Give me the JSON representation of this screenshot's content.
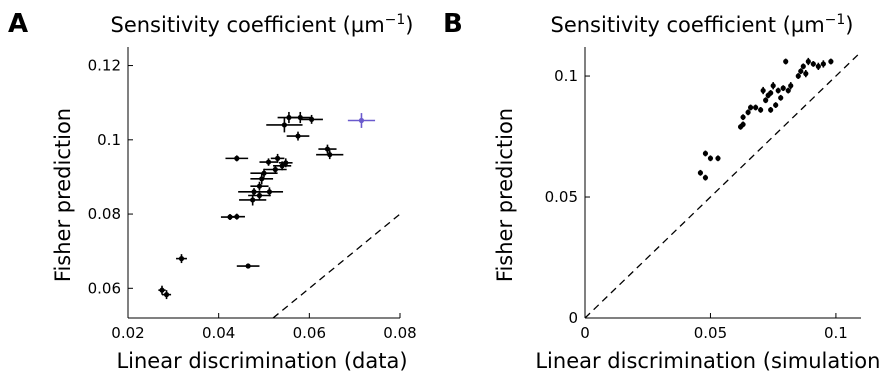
{
  "chart_data": [
    {
      "panel": "A",
      "type": "scatter",
      "title": "Sensitivity coefficient (µm⁻¹)",
      "xlabel": "Linear discrimination (data)",
      "ylabel": "Fisher prediction",
      "xlim": [
        0.02,
        0.08
      ],
      "ylim": [
        0.052,
        0.125
      ],
      "xticks": [
        0.02,
        0.04,
        0.06,
        0.08
      ],
      "xtick_labels": [
        "0.02",
        "0.04",
        "0.06",
        "0.08"
      ],
      "yticks": [
        0.06,
        0.08,
        0.1,
        0.12
      ],
      "ytick_labels": [
        "0.06",
        "0.08",
        "0.1",
        "0.12"
      ],
      "reference_line": "y = x (dashed)",
      "points": [
        {
          "x": 0.0275,
          "y": 0.0595,
          "xerr": 0.0008,
          "yerr": 0.0012,
          "color": "#000000"
        },
        {
          "x": 0.0285,
          "y": 0.0583,
          "xerr": 0.001,
          "yerr": 0.0012,
          "color": "#000000"
        },
        {
          "x": 0.0318,
          "y": 0.068,
          "xerr": 0.0012,
          "yerr": 0.0012,
          "color": "#000000"
        },
        {
          "x": 0.0465,
          "y": 0.066,
          "xerr": 0.0025,
          "yerr": 0.0005,
          "color": "#000000"
        },
        {
          "x": 0.0425,
          "y": 0.0792,
          "xerr": 0.002,
          "yerr": 0.0008,
          "color": "#000000"
        },
        {
          "x": 0.044,
          "y": 0.0793,
          "xerr": 0.0018,
          "yerr": 0.0008,
          "color": "#000000"
        },
        {
          "x": 0.0475,
          "y": 0.0838,
          "xerr": 0.003,
          "yerr": 0.0015,
          "color": "#000000"
        },
        {
          "x": 0.049,
          "y": 0.085,
          "xerr": 0.0025,
          "yerr": 0.0012,
          "color": "#000000"
        },
        {
          "x": 0.0478,
          "y": 0.086,
          "xerr": 0.0035,
          "yerr": 0.001,
          "color": "#000000"
        },
        {
          "x": 0.0512,
          "y": 0.086,
          "xerr": 0.003,
          "yerr": 0.0012,
          "color": "#000000"
        },
        {
          "x": 0.049,
          "y": 0.0875,
          "xerr": 0.002,
          "yerr": 0.0012,
          "color": "#000000"
        },
        {
          "x": 0.0495,
          "y": 0.0895,
          "xerr": 0.0025,
          "yerr": 0.0015,
          "color": "#000000"
        },
        {
          "x": 0.05,
          "y": 0.091,
          "xerr": 0.003,
          "yerr": 0.0012,
          "color": "#000000"
        },
        {
          "x": 0.0525,
          "y": 0.092,
          "xerr": 0.0025,
          "yerr": 0.0012,
          "color": "#000000"
        },
        {
          "x": 0.054,
          "y": 0.093,
          "xerr": 0.002,
          "yerr": 0.0012,
          "color": "#000000"
        },
        {
          "x": 0.051,
          "y": 0.094,
          "xerr": 0.002,
          "yerr": 0.001,
          "color": "#000000"
        },
        {
          "x": 0.0548,
          "y": 0.0938,
          "xerr": 0.0015,
          "yerr": 0.0012,
          "color": "#000000"
        },
        {
          "x": 0.044,
          "y": 0.095,
          "xerr": 0.0025,
          "yerr": 0.0008,
          "color": "#000000"
        },
        {
          "x": 0.053,
          "y": 0.095,
          "xerr": 0.0015,
          "yerr": 0.0012,
          "color": "#000000"
        },
        {
          "x": 0.0545,
          "y": 0.104,
          "xerr": 0.004,
          "yerr": 0.002,
          "color": "#000000"
        },
        {
          "x": 0.0555,
          "y": 0.106,
          "xerr": 0.0025,
          "yerr": 0.0015,
          "color": "#000000"
        },
        {
          "x": 0.058,
          "y": 0.106,
          "xerr": 0.0025,
          "yerr": 0.0015,
          "color": "#000000"
        },
        {
          "x": 0.0605,
          "y": 0.1055,
          "xerr": 0.0025,
          "yerr": 0.0012,
          "color": "#000000"
        },
        {
          "x": 0.0575,
          "y": 0.101,
          "xerr": 0.0025,
          "yerr": 0.0012,
          "color": "#000000"
        },
        {
          "x": 0.064,
          "y": 0.0975,
          "xerr": 0.002,
          "yerr": 0.0012,
          "color": "#000000"
        },
        {
          "x": 0.0645,
          "y": 0.096,
          "xerr": 0.003,
          "yerr": 0.0012,
          "color": "#000000"
        },
        {
          "x": 0.0715,
          "y": 0.1052,
          "xerr": 0.003,
          "yerr": 0.002,
          "color": "#6a5acd"
        }
      ]
    },
    {
      "panel": "B",
      "type": "scatter",
      "title": "Sensitivity coefficient (µm⁻¹)",
      "xlabel": "Linear discrimination (simulation)",
      "ylabel": "Fisher prediction",
      "xlim": [
        0,
        0.11
      ],
      "ylim": [
        0,
        0.112
      ],
      "xticks": [
        0,
        0.05,
        0.1
      ],
      "xtick_labels": [
        "0",
        "0.05",
        "0.1"
      ],
      "yticks": [
        0,
        0.05,
        0.1
      ],
      "ytick_labels": [
        "0",
        "0.05",
        "0.1"
      ],
      "reference_line": "y = x (dashed)",
      "points": [
        {
          "x": 0.046,
          "y": 0.06,
          "yerr": 0.0012,
          "color": "#000000"
        },
        {
          "x": 0.048,
          "y": 0.058,
          "yerr": 0.0012,
          "color": "#000000"
        },
        {
          "x": 0.048,
          "y": 0.068,
          "yerr": 0.0012,
          "color": "#000000"
        },
        {
          "x": 0.05,
          "y": 0.066,
          "yerr": 0.0012,
          "color": "#000000"
        },
        {
          "x": 0.053,
          "y": 0.066,
          "yerr": 0.0012,
          "color": "#000000"
        },
        {
          "x": 0.062,
          "y": 0.079,
          "yerr": 0.0012,
          "color": "#000000"
        },
        {
          "x": 0.063,
          "y": 0.08,
          "yerr": 0.0012,
          "color": "#000000"
        },
        {
          "x": 0.063,
          "y": 0.083,
          "yerr": 0.0012,
          "color": "#000000"
        },
        {
          "x": 0.065,
          "y": 0.085,
          "yerr": 0.0012,
          "color": "#000000"
        },
        {
          "x": 0.066,
          "y": 0.087,
          "yerr": 0.0012,
          "color": "#000000"
        },
        {
          "x": 0.068,
          "y": 0.087,
          "yerr": 0.0012,
          "color": "#000000"
        },
        {
          "x": 0.07,
          "y": 0.086,
          "yerr": 0.0012,
          "color": "#000000"
        },
        {
          "x": 0.071,
          "y": 0.094,
          "yerr": 0.0015,
          "color": "#000000"
        },
        {
          "x": 0.072,
          "y": 0.09,
          "yerr": 0.0012,
          "color": "#000000"
        },
        {
          "x": 0.073,
          "y": 0.092,
          "yerr": 0.0012,
          "color": "#000000"
        },
        {
          "x": 0.074,
          "y": 0.086,
          "yerr": 0.0012,
          "color": "#000000"
        },
        {
          "x": 0.074,
          "y": 0.093,
          "yerr": 0.0012,
          "color": "#000000"
        },
        {
          "x": 0.075,
          "y": 0.096,
          "yerr": 0.0015,
          "color": "#000000"
        },
        {
          "x": 0.076,
          "y": 0.088,
          "yerr": 0.0012,
          "color": "#000000"
        },
        {
          "x": 0.077,
          "y": 0.094,
          "yerr": 0.0012,
          "color": "#000000"
        },
        {
          "x": 0.078,
          "y": 0.091,
          "yerr": 0.0012,
          "color": "#000000"
        },
        {
          "x": 0.079,
          "y": 0.095,
          "yerr": 0.0012,
          "color": "#000000"
        },
        {
          "x": 0.08,
          "y": 0.106,
          "yerr": 0.0012,
          "color": "#000000"
        },
        {
          "x": 0.081,
          "y": 0.094,
          "yerr": 0.0012,
          "color": "#000000"
        },
        {
          "x": 0.082,
          "y": 0.096,
          "yerr": 0.0015,
          "color": "#000000"
        },
        {
          "x": 0.085,
          "y": 0.1,
          "yerr": 0.0012,
          "color": "#000000"
        },
        {
          "x": 0.086,
          "y": 0.102,
          "yerr": 0.0012,
          "color": "#000000"
        },
        {
          "x": 0.087,
          "y": 0.104,
          "yerr": 0.0012,
          "color": "#000000"
        },
        {
          "x": 0.088,
          "y": 0.101,
          "yerr": 0.0015,
          "color": "#000000"
        },
        {
          "x": 0.089,
          "y": 0.106,
          "yerr": 0.0015,
          "color": "#000000"
        },
        {
          "x": 0.091,
          "y": 0.105,
          "yerr": 0.0012,
          "color": "#000000"
        },
        {
          "x": 0.093,
          "y": 0.104,
          "yerr": 0.0015,
          "color": "#000000"
        },
        {
          "x": 0.095,
          "y": 0.105,
          "yerr": 0.0015,
          "color": "#000000"
        },
        {
          "x": 0.098,
          "y": 0.106,
          "yerr": 0.0012,
          "color": "#000000"
        }
      ]
    }
  ],
  "panels": {
    "a": {
      "letter": "A",
      "title_main": "Sensitivity coefficient (µm",
      "title_sup": "−1",
      "title_end": ")",
      "xlabel": "Linear discrimination (data)",
      "ylabel": "Fisher prediction"
    },
    "b": {
      "letter": "B",
      "title_main": "Sensitivity coefficient (µm",
      "title_sup": "−1",
      "title_end": ")",
      "xlabel": "Linear discrimination (simulation)",
      "ylabel": "Fisher prediction"
    }
  }
}
